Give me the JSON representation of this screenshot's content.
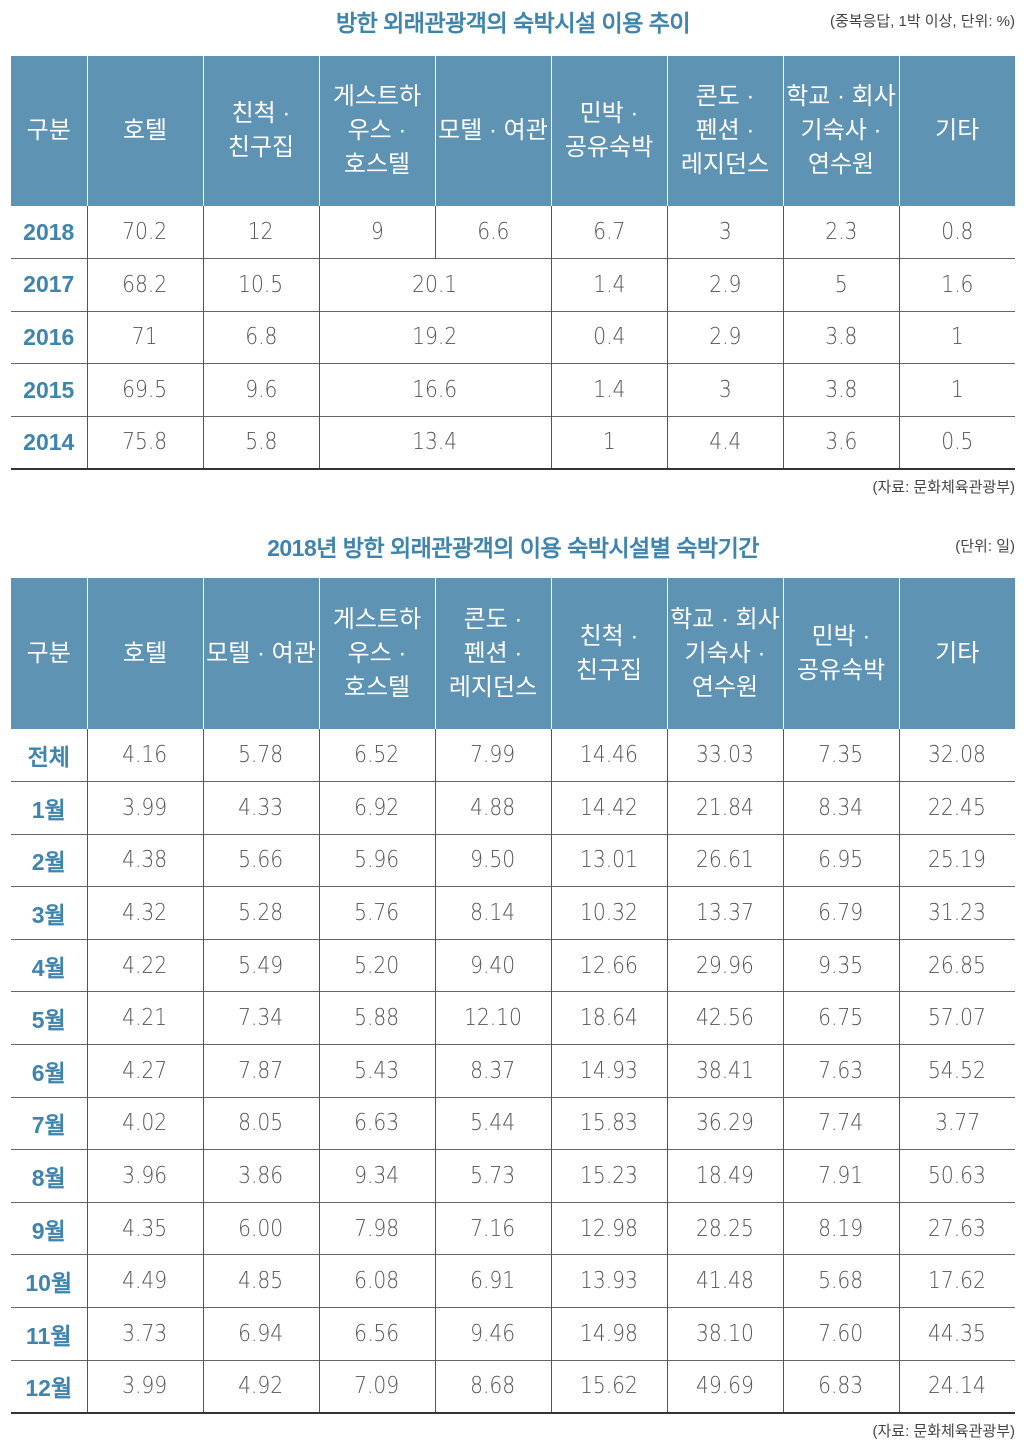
{
  "table1": {
    "title": "방한 외래관광객의 숙박시설 이용 추이",
    "note": "(중복응답, 1박 이상, 단위: %)",
    "headers": [
      "구분",
      "호텔",
      "친척 · 친구집",
      "게스트하 우스 · 호스텔",
      "모텔 · 여관",
      "민박 · 공유숙박",
      "콘도 · 펜션 · 레지던스",
      "학교 · 회사 기숙사 · 연수원",
      "기타"
    ],
    "header_lines": [
      [
        "구분"
      ],
      [
        "호텔"
      ],
      [
        "친척 ·",
        "친구집"
      ],
      [
        "게스트하",
        "우스 ·",
        "호스텔"
      ],
      [
        "모텔 · 여관"
      ],
      [
        "민박 ·",
        "공유숙박"
      ],
      [
        "콘도 ·",
        "펜션 ·",
        "레지던스"
      ],
      [
        "학교 · 회사",
        "기숙사 ·",
        "연수원"
      ],
      [
        "기타"
      ]
    ],
    "rows": [
      {
        "year": "2018",
        "hotel": "70.2",
        "relatives": "12",
        "guesthouse": "9",
        "motel": "6.6",
        "minbak": "6.7",
        "condo": "3",
        "school": "2.3",
        "other": "0.8"
      },
      {
        "year": "2017",
        "hotel": "68.2",
        "relatives": "10.5",
        "guesthouse_motel": "20.1",
        "minbak": "1.4",
        "condo": "2.9",
        "school": "5",
        "other": "1.6"
      },
      {
        "year": "2016",
        "hotel": "71",
        "relatives": "6.8",
        "guesthouse_motel": "19.2",
        "minbak": "0.4",
        "condo": "2.9",
        "school": "3.8",
        "other": "1"
      },
      {
        "year": "2015",
        "hotel": "69.5",
        "relatives": "9.6",
        "guesthouse_motel": "16.6",
        "minbak": "1.4",
        "condo": "3",
        "school": "3.8",
        "other": "1"
      },
      {
        "year": "2014",
        "hotel": "75.8",
        "relatives": "5.8",
        "guesthouse_motel": "13.4",
        "minbak": "1",
        "condo": "4.4",
        "school": "3.6",
        "other": "0.5"
      }
    ],
    "source": "(자료: 문화체육관광부)"
  },
  "table2": {
    "title": "2018년 방한 외래관광객의 이용 숙박시설별 숙박기간",
    "note": "(단위: 일)",
    "headers": [
      "구분",
      "호텔",
      "모텔 · 여관",
      "게스트하 우스 · 호스텔",
      "콘도 · 펜션 · 레지던스",
      "친척 · 친구집",
      "학교 · 회사 기숙사 · 연수원",
      "민박 · 공유숙박",
      "기타"
    ],
    "header_lines": [
      [
        "구분"
      ],
      [
        "호텔"
      ],
      [
        "모텔 · 여관"
      ],
      [
        "게스트하",
        "우스 ·",
        "호스텔"
      ],
      [
        "콘도 ·",
        "펜션 ·",
        "레지던스"
      ],
      [
        "친척 ·",
        "친구집"
      ],
      [
        "학교 · 회사",
        "기숙사 ·",
        "연수원"
      ],
      [
        "민박 ·",
        "공유숙박"
      ],
      [
        "기타"
      ]
    ],
    "rows": [
      [
        "전체",
        "4.16",
        "5.78",
        "6.52",
        "7.99",
        "14.46",
        "33.03",
        "7.35",
        "32.08"
      ],
      [
        "1월",
        "3.99",
        "4.33",
        "6.92",
        "4.88",
        "14.42",
        "21.84",
        "8.34",
        "22.45"
      ],
      [
        "2월",
        "4.38",
        "5.66",
        "5.96",
        "9.50",
        "13.01",
        "26.61",
        "6.95",
        "25.19"
      ],
      [
        "3월",
        "4.32",
        "5.28",
        "5.76",
        "8.14",
        "10.32",
        "13.37",
        "6.79",
        "31.23"
      ],
      [
        "4월",
        "4.22",
        "5.49",
        "5.20",
        "9.40",
        "12.66",
        "29.96",
        "9.35",
        "26.85"
      ],
      [
        "5월",
        "4.21",
        "7.34",
        "5.88",
        "12.10",
        "18.64",
        "42.56",
        "6.75",
        "57.07"
      ],
      [
        "6월",
        "4.27",
        "7.87",
        "5.43",
        "8.37",
        "14.93",
        "38.41",
        "7.63",
        "54.52"
      ],
      [
        "7월",
        "4.02",
        "8.05",
        "6.63",
        "5.44",
        "15.83",
        "36.29",
        "7.74",
        "3.77"
      ],
      [
        "8월",
        "3.96",
        "3.86",
        "9.34",
        "5.73",
        "15.23",
        "18.49",
        "7.91",
        "50.63"
      ],
      [
        "9월",
        "4.35",
        "6.00",
        "7.98",
        "7.16",
        "12.98",
        "28.25",
        "8.19",
        "27.63"
      ],
      [
        "10월",
        "4.49",
        "4.85",
        "6.08",
        "6.91",
        "13.93",
        "41.48",
        "5.68",
        "17.62"
      ],
      [
        "11월",
        "3.73",
        "6.94",
        "6.56",
        "9.46",
        "14.98",
        "38.10",
        "7.60",
        "44.35"
      ],
      [
        "12월",
        "3.99",
        "4.92",
        "7.09",
        "8.68",
        "15.62",
        "49.69",
        "6.83",
        "24.14"
      ]
    ],
    "source": "(자료: 문화체육관광부)"
  },
  "colors": {
    "header_bg": "#5e93b3",
    "title_blue": "#3e84ad"
  }
}
